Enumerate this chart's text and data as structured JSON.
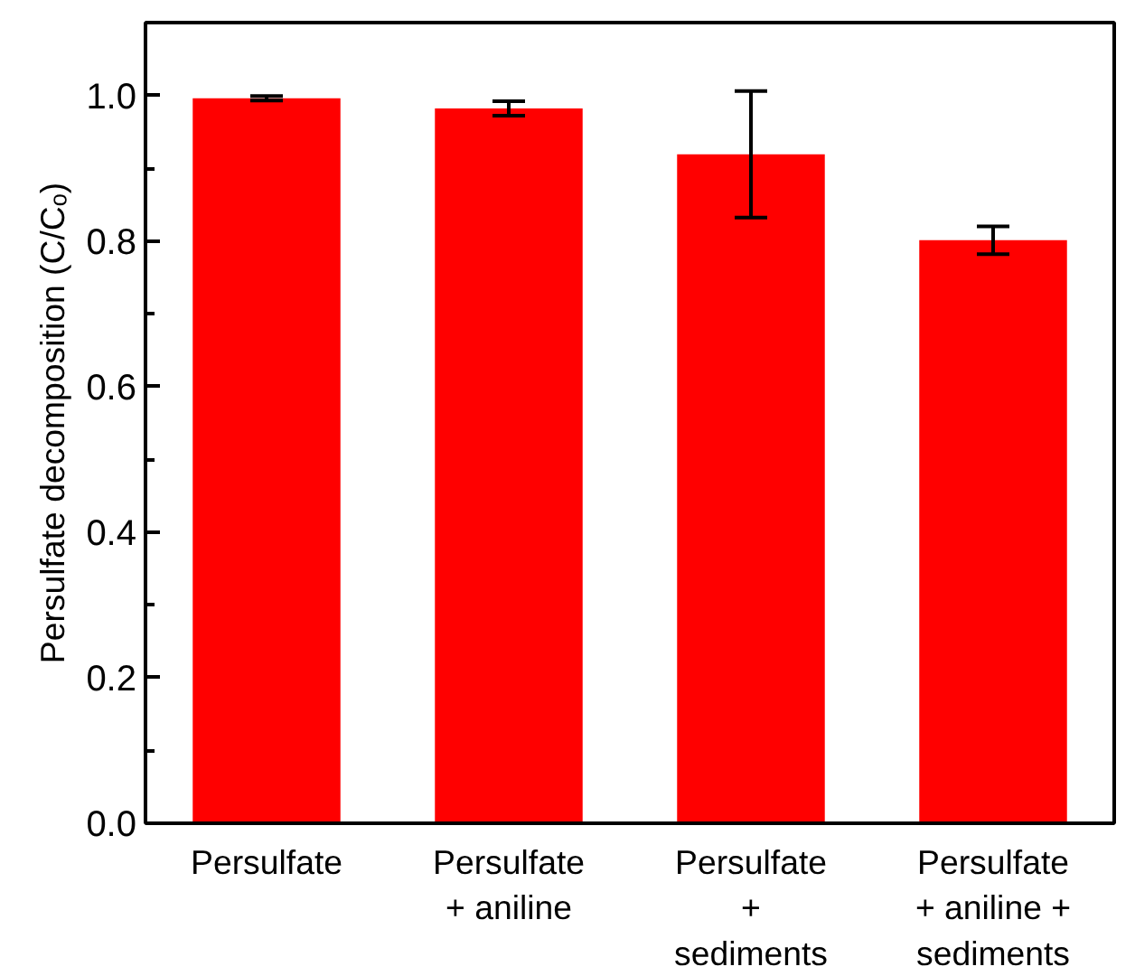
{
  "chart_data": {
    "type": "bar",
    "ylabel": "Persulfate decomposition (C/Cₒ)",
    "categories": [
      "Persulfate",
      "Persulfate\n+ aniline",
      "Persulfate\n+\nsediments",
      "Persulfate\n+ aniline +\nsediments"
    ],
    "series": [
      {
        "color": "#ff0000",
        "values": [
          0.996,
          0.982,
          0.919,
          0.801
        ],
        "errors": [
          0.003,
          0.01,
          0.087,
          0.019
        ]
      }
    ],
    "ylim": [
      0,
      1.1
    ],
    "yticks": [
      {
        "value": 0,
        "label": "0.0"
      },
      0.2,
      0.4,
      0.6,
      0.8,
      {
        "value": 1,
        "label": "1.0"
      }
    ],
    "grid": false
  }
}
